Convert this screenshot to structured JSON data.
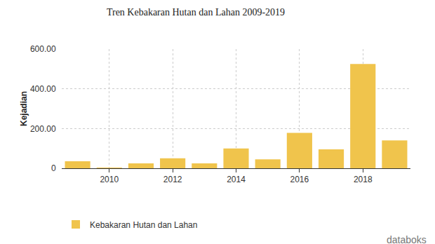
{
  "chart_data": {
    "type": "bar",
    "title": "Tren Kebakaran Hutan dan Lahan 2009-2019",
    "y_label": "Kejadian",
    "x": [
      2009,
      2010,
      2011,
      2012,
      2013,
      2014,
      2015,
      2016,
      2017,
      2018,
      2019
    ],
    "series": [
      {
        "name": "Kebakaran Hutan dan Lahan",
        "color": "#f0c44c",
        "values": [
          35,
          3,
          25,
          50,
          25,
          100,
          45,
          178,
          95,
          525,
          140
        ]
      }
    ],
    "xlim": [
      2008.5,
      2019.5
    ],
    "xticks": [
      2010,
      2012,
      2014,
      2016,
      2018
    ],
    "ylim": [
      0,
      600
    ],
    "yticks": [
      0,
      {
        "value": 200,
        "label": "200.00"
      },
      {
        "value": 400,
        "label": "400.00"
      },
      {
        "value": 600,
        "label": "600.00"
      }
    ],
    "grid": true,
    "legend": "bottom",
    "annotations": [
      "databoks"
    ]
  }
}
